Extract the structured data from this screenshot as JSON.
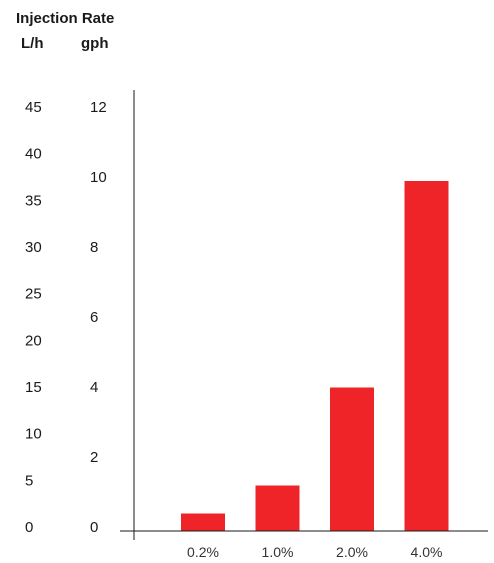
{
  "chart_data": {
    "type": "bar",
    "title": "Injection Rate",
    "left_axis": {
      "label": "L/h",
      "ticks": [
        "0",
        "5",
        "10",
        "15",
        "20",
        "25",
        "30",
        "35",
        "40",
        "45"
      ],
      "range": [
        0,
        45
      ]
    },
    "right_axis": {
      "label": "gph",
      "ticks": [
        "0",
        "2",
        "4",
        "6",
        "8",
        "10",
        "12"
      ],
      "range": [
        0,
        12
      ]
    },
    "categories": [
      "0.2%",
      "1.0%",
      "2.0%",
      "4.0%"
    ],
    "values": [
      0.5,
      1.3,
      4.1,
      10.0
    ],
    "value_units": "gph",
    "bar_color": "#ee2428",
    "grid": false,
    "legend": "none"
  }
}
